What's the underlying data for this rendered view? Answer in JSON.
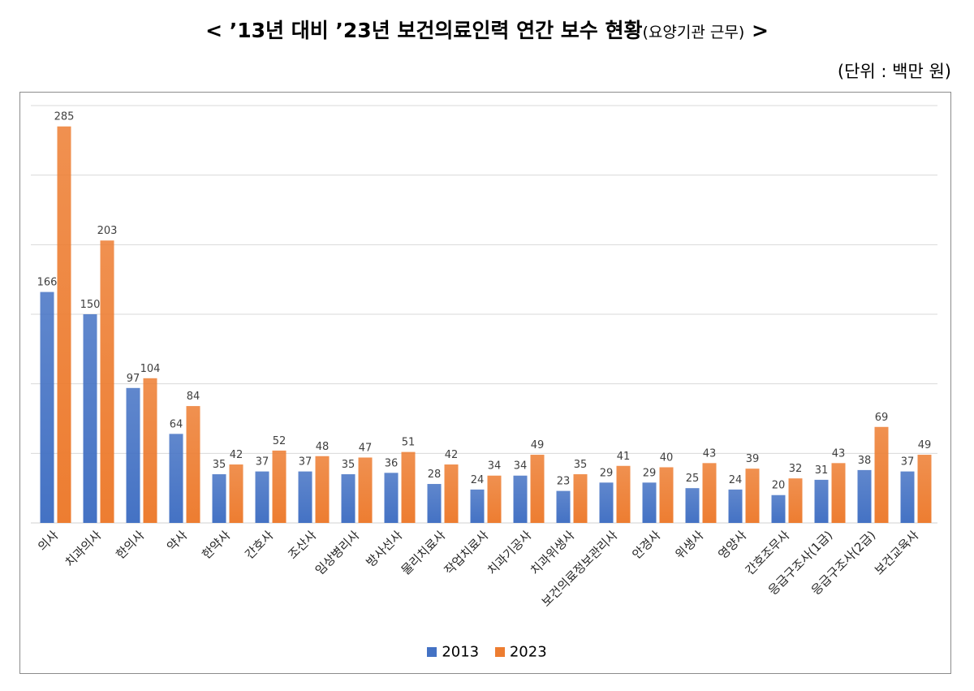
{
  "header": {
    "title_main": "< ’13년 대비 ’23년 보건의료인력 연간 보수 현황",
    "title_sub": "(요양기관 근무)",
    "title_end": " >",
    "unit": "(단위 : 백만 원)"
  },
  "colors": {
    "series_2013": "#4472C4",
    "series_2023": "#ED7D31",
    "grid": "#d9d9d9"
  },
  "chart_data": {
    "type": "bar",
    "title": "< ’13년 대비 ’23년 보건의료인력 연간 보수 현황(요양기관 근무) >",
    "unit_label": "(단위 : 백만 원)",
    "categories": [
      "의사",
      "치과의사",
      "한의사",
      "약사",
      "한약사",
      "간호사",
      "조산사",
      "임상병리사",
      "방사선사",
      "물리치료사",
      "작업치료사",
      "치과기공사",
      "치과위생사",
      "보건의료정보관리사",
      "안경사",
      "위생사",
      "영양사",
      "간호조무사",
      "응급구조사(1급)",
      "응급구조사(2급)",
      "보건교육사"
    ],
    "series": [
      {
        "name": "2013",
        "values": [
          166,
          150,
          97,
          64,
          35,
          37,
          37,
          35,
          36,
          28,
          24,
          34,
          23,
          29,
          29,
          25,
          24,
          20,
          31,
          38,
          37
        ]
      },
      {
        "name": "2023",
        "values": [
          285,
          203,
          104,
          84,
          42,
          52,
          48,
          47,
          51,
          42,
          34,
          49,
          35,
          41,
          40,
          43,
          39,
          32,
          43,
          69,
          49
        ]
      }
    ],
    "legend_position": "bottom",
    "grid": true
  }
}
